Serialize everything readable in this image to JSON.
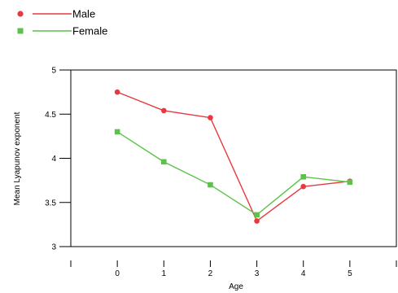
{
  "chart_data": {
    "type": "line",
    "x": [
      0,
      1,
      2,
      3,
      4,
      5
    ],
    "xticks": [
      "0",
      "1",
      "2",
      "3",
      "4",
      "5"
    ],
    "xlabel": "Age",
    "ylabel": "Mean Lyapunov exponent",
    "ylim": [
      3,
      5
    ],
    "yticks": [
      "3",
      "3.5",
      "4",
      "4.5",
      "5"
    ],
    "xlim": [
      -1,
      6
    ],
    "grid": false,
    "legend_position": "top-left",
    "series": [
      {
        "name": "Male",
        "color": "#e8383d",
        "marker": "circle",
        "values": [
          4.75,
          4.54,
          4.46,
          3.29,
          3.68,
          3.74
        ]
      },
      {
        "name": "Female",
        "color": "#5cc24c",
        "marker": "square",
        "values": [
          4.3,
          3.96,
          3.7,
          3.36,
          3.79,
          3.73
        ]
      }
    ]
  }
}
